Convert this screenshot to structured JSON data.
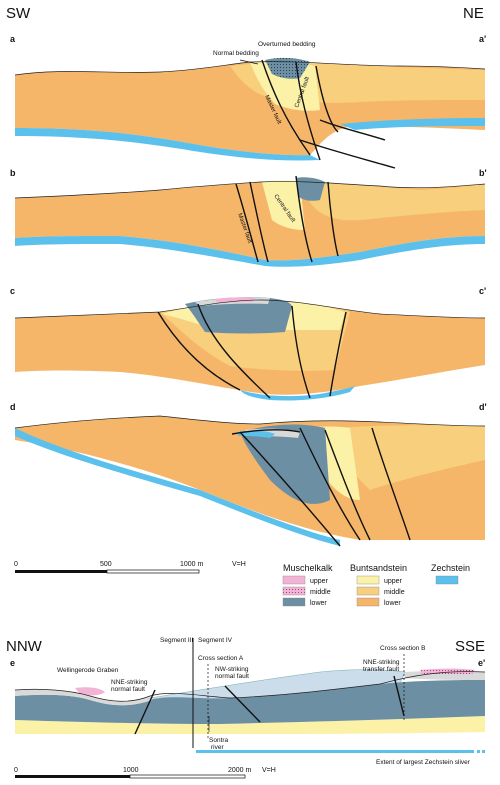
{
  "orientation": {
    "top_left": "SW",
    "top_right": "NE",
    "bottom_left": "NNW",
    "bottom_right": "SSE"
  },
  "sections": [
    {
      "start": "a",
      "end": "a'"
    },
    {
      "start": "b",
      "end": "b'"
    },
    {
      "start": "c",
      "end": "c'"
    },
    {
      "start": "d",
      "end": "d'"
    },
    {
      "start": "e",
      "end": "e'"
    }
  ],
  "annotations": {
    "normal_bedding": "Normal bedding",
    "overturned_bedding": "Overturned bedding",
    "master_fault": "Master fault",
    "central_fault": "Central fault"
  },
  "scale_top": {
    "zero": "0",
    "mid": "500",
    "end": "1000 m",
    "ratio": "V=H"
  },
  "scale_bottom": {
    "zero": "0",
    "mid": "1000",
    "end": "2000 m",
    "ratio": "V=H"
  },
  "legend": {
    "muschelkalk": {
      "title": "Muschelkalk",
      "upper": "upper",
      "middle": "middle",
      "lower": "lower"
    },
    "buntsandstein": {
      "title": "Buntsandstein",
      "upper": "upper",
      "middle": "middle",
      "lower": "lower"
    },
    "zechstein": {
      "title": "Zechstein"
    }
  },
  "bottom_section": {
    "segment_iii": "Segment III",
    "segment_iv": "Segment IV",
    "wellingerode": "Wellingerode Graben",
    "nne_normal_1": "NNE-striking",
    "nne_normal_2": "normal fault",
    "cross_a": "Cross section A",
    "nw_normal_1": "NW-striking",
    "nw_normal_2": "normal fault",
    "cross_b": "Cross section B",
    "nne_transfer_1": "NNE-striking",
    "nne_transfer_2": "transfer fault",
    "sontra_1": "Sontra",
    "sontra_2": "river",
    "extent": "Extent of largest Zechstein sliver"
  },
  "colors": {
    "zechstein": "#5bc0eb",
    "bunt_lower": "#f5b66a",
    "bunt_middle": "#f8cf7c",
    "bunt_upper": "#fbf2a8",
    "musch_lower": "#6d8fa3",
    "musch_middle": "#d9d9d9",
    "musch_upper": "#f3b3d6"
  }
}
